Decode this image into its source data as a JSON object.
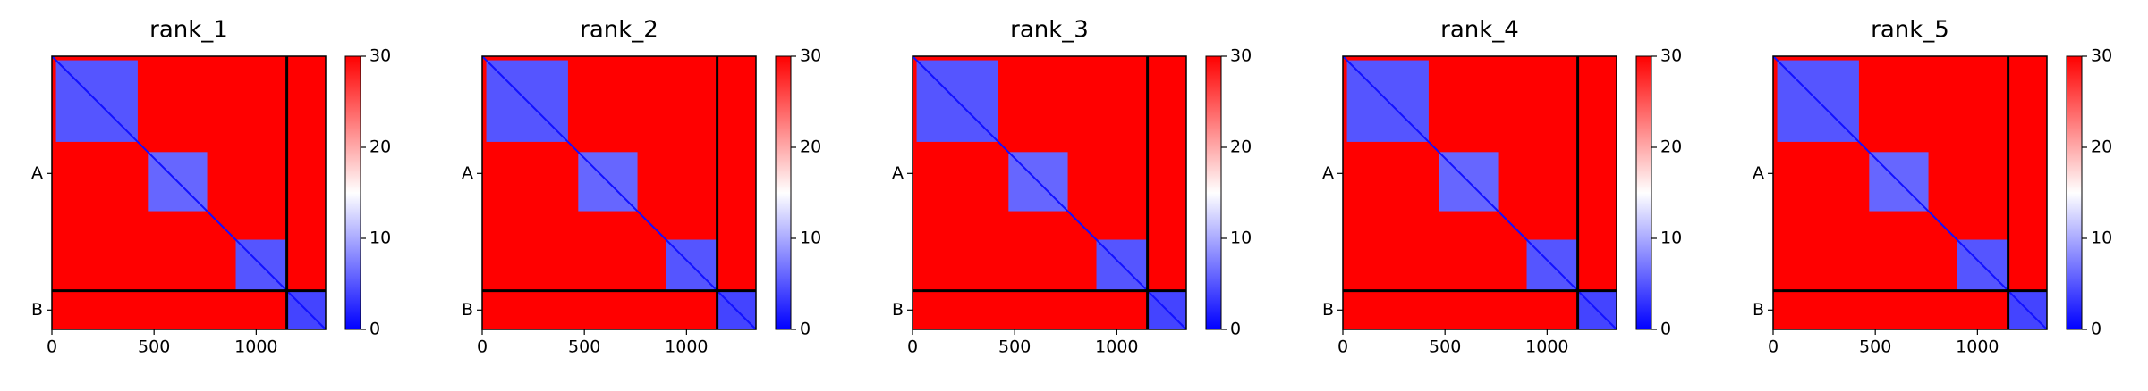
{
  "chart_data": [
    {
      "type": "heatmap",
      "title": "rank_1",
      "xlim": [
        0,
        1340
      ],
      "ylim": [
        1340,
        0
      ],
      "xticks": [
        0,
        500,
        1000
      ],
      "yticks": [
        {
          "value": 575,
          "label": "A"
        },
        {
          "value": 1245,
          "label": "B"
        }
      ],
      "chain_breaks": [
        1150
      ],
      "clim": [
        0,
        30
      ],
      "cticks": [
        0,
        10,
        20,
        30
      ],
      "colormap": "bwr",
      "diagonal_value": 1,
      "cells": [
        {
          "x": [
            0,
            1340
          ],
          "y": [
            0,
            1340
          ],
          "value": 30
        },
        {
          "x": [
            20,
            420
          ],
          "y": [
            20,
            420
          ],
          "value": 5
        },
        {
          "x": [
            470,
            760
          ],
          "y": [
            470,
            760
          ],
          "value": 6
        },
        {
          "x": [
            900,
            1150
          ],
          "y": [
            900,
            1150
          ],
          "value": 5
        },
        {
          "x": [
            1150,
            1340
          ],
          "y": [
            1150,
            1340
          ],
          "value": 4
        }
      ]
    },
    {
      "type": "heatmap",
      "title": "rank_2",
      "xlim": [
        0,
        1340
      ],
      "ylim": [
        1340,
        0
      ],
      "xticks": [
        0,
        500,
        1000
      ],
      "yticks": [
        {
          "value": 575,
          "label": "A"
        },
        {
          "value": 1245,
          "label": "B"
        }
      ],
      "chain_breaks": [
        1150
      ],
      "clim": [
        0,
        30
      ],
      "cticks": [
        0,
        10,
        20,
        30
      ],
      "colormap": "bwr",
      "diagonal_value": 1,
      "cells": [
        {
          "x": [
            0,
            1340
          ],
          "y": [
            0,
            1340
          ],
          "value": 30
        },
        {
          "x": [
            20,
            420
          ],
          "y": [
            20,
            420
          ],
          "value": 5
        },
        {
          "x": [
            470,
            760
          ],
          "y": [
            470,
            760
          ],
          "value": 6
        },
        {
          "x": [
            900,
            1150
          ],
          "y": [
            900,
            1150
          ],
          "value": 5
        },
        {
          "x": [
            1150,
            1340
          ],
          "y": [
            1150,
            1340
          ],
          "value": 4
        }
      ]
    },
    {
      "type": "heatmap",
      "title": "rank_3",
      "xlim": [
        0,
        1340
      ],
      "ylim": [
        1340,
        0
      ],
      "xticks": [
        0,
        500,
        1000
      ],
      "yticks": [
        {
          "value": 575,
          "label": "A"
        },
        {
          "value": 1245,
          "label": "B"
        }
      ],
      "chain_breaks": [
        1150
      ],
      "clim": [
        0,
        30
      ],
      "cticks": [
        0,
        10,
        20,
        30
      ],
      "colormap": "bwr",
      "diagonal_value": 1,
      "cells": [
        {
          "x": [
            0,
            1340
          ],
          "y": [
            0,
            1340
          ],
          "value": 30
        },
        {
          "x": [
            20,
            420
          ],
          "y": [
            20,
            420
          ],
          "value": 5
        },
        {
          "x": [
            470,
            760
          ],
          "y": [
            470,
            760
          ],
          "value": 6
        },
        {
          "x": [
            900,
            1150
          ],
          "y": [
            900,
            1150
          ],
          "value": 5
        },
        {
          "x": [
            1150,
            1340
          ],
          "y": [
            1150,
            1340
          ],
          "value": 4
        }
      ]
    },
    {
      "type": "heatmap",
      "title": "rank_4",
      "xlim": [
        0,
        1340
      ],
      "ylim": [
        1340,
        0
      ],
      "xticks": [
        0,
        500,
        1000
      ],
      "yticks": [
        {
          "value": 575,
          "label": "A"
        },
        {
          "value": 1245,
          "label": "B"
        }
      ],
      "chain_breaks": [
        1150
      ],
      "clim": [
        0,
        30
      ],
      "cticks": [
        0,
        10,
        20,
        30
      ],
      "colormap": "bwr",
      "diagonal_value": 1,
      "cells": [
        {
          "x": [
            0,
            1340
          ],
          "y": [
            0,
            1340
          ],
          "value": 30
        },
        {
          "x": [
            20,
            420
          ],
          "y": [
            20,
            420
          ],
          "value": 5
        },
        {
          "x": [
            470,
            760
          ],
          "y": [
            470,
            760
          ],
          "value": 6
        },
        {
          "x": [
            900,
            1150
          ],
          "y": [
            900,
            1150
          ],
          "value": 5
        },
        {
          "x": [
            1150,
            1340
          ],
          "y": [
            1150,
            1340
          ],
          "value": 4
        }
      ]
    },
    {
      "type": "heatmap",
      "title": "rank_5",
      "xlim": [
        0,
        1340
      ],
      "ylim": [
        1340,
        0
      ],
      "xticks": [
        0,
        500,
        1000
      ],
      "yticks": [
        {
          "value": 575,
          "label": "A"
        },
        {
          "value": 1245,
          "label": "B"
        }
      ],
      "chain_breaks": [
        1150
      ],
      "clim": [
        0,
        30
      ],
      "cticks": [
        0,
        10,
        20,
        30
      ],
      "colormap": "bwr",
      "diagonal_value": 1,
      "cells": [
        {
          "x": [
            0,
            1340
          ],
          "y": [
            0,
            1340
          ],
          "value": 30
        },
        {
          "x": [
            20,
            420
          ],
          "y": [
            20,
            420
          ],
          "value": 5
        },
        {
          "x": [
            470,
            760
          ],
          "y": [
            470,
            760
          ],
          "value": 6
        },
        {
          "x": [
            900,
            1150
          ],
          "y": [
            900,
            1150
          ],
          "value": 5
        },
        {
          "x": [
            1150,
            1340
          ],
          "y": [
            1150,
            1340
          ],
          "value": 4
        }
      ]
    }
  ]
}
